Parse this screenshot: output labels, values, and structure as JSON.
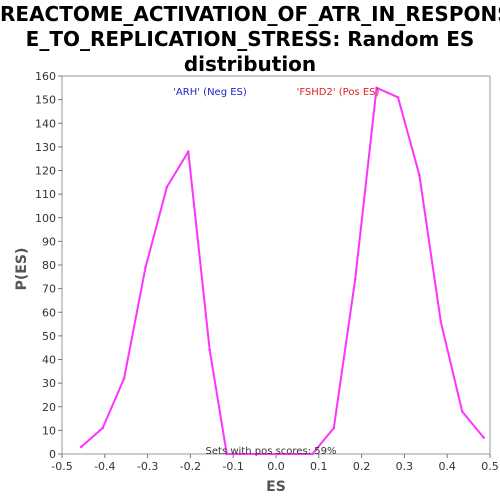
{
  "chart_data": {
    "type": "line",
    "title_lines": [
      "REACTOME_ACTIVATION_OF_ATR_IN_RESPONS",
      "E_TO_REPLICATION_STRESS: Random ES",
      "distribution"
    ],
    "xlabel": "ES",
    "ylabel": "P(ES)",
    "xlim": [
      -0.5,
      0.5
    ],
    "ylim": [
      0,
      160
    ],
    "x_ticks": [
      "-0.5",
      "-0.4",
      "-0.3",
      "-0.2",
      "-0.1",
      "0.0",
      "0.1",
      "0.2",
      "0.3",
      "0.4",
      "0.5"
    ],
    "y_ticks": [
      "0",
      "10",
      "20",
      "30",
      "40",
      "50",
      "60",
      "70",
      "80",
      "90",
      "100",
      "110",
      "120",
      "130",
      "140",
      "150",
      "160"
    ],
    "grid": false,
    "series": [
      {
        "color": "#ff33ff",
        "x": [
          -0.455,
          -0.405,
          -0.355,
          -0.305,
          -0.255,
          -0.205,
          -0.155,
          -0.115,
          -0.085,
          0.085,
          0.135,
          0.185,
          0.235,
          0.285,
          0.335,
          0.385,
          0.435,
          0.485
        ],
        "y": [
          3,
          11,
          32,
          79,
          113,
          128,
          44,
          0,
          0,
          0,
          11,
          74,
          155,
          151,
          118,
          56,
          18,
          7
        ]
      }
    ],
    "annotations": [
      {
        "text": "'ARH' (Neg ES)",
        "color": "#2222cc"
      },
      {
        "text": "'FSHD2' (Pos ES)",
        "color": "#dd2222"
      },
      {
        "text": "Sets with pos scores: 59%",
        "color": "#333333"
      }
    ]
  }
}
